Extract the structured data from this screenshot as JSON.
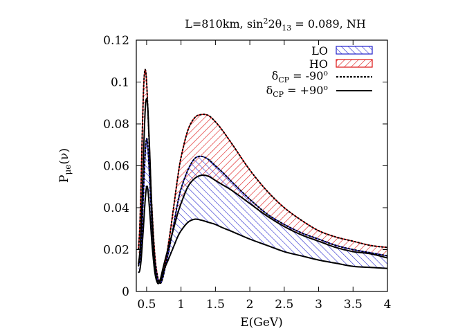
{
  "chart_data": {
    "type": "area",
    "title": "L=810km, sin²2θ₁₃ = 0.089, NH",
    "title_parts": {
      "prefix": "L=810km, sin",
      "sup": "2",
      "mid": "2θ",
      "sub": "13",
      "suffix": " = 0.089, NH"
    },
    "xlabel": "E(GeV)",
    "ylabel": {
      "base": "P",
      "sub": "μe",
      "suffix": "(ν)"
    },
    "xlim": [
      0.35,
      4.0
    ],
    "ylim": [
      0.0,
      0.12
    ],
    "xticks": [
      0.5,
      1,
      1.5,
      2,
      2.5,
      3,
      3.5,
      4
    ],
    "xtick_labels": [
      "0.5",
      "1",
      "1.5",
      "2",
      "2.5",
      "3",
      "3.5",
      "4"
    ],
    "yticks": [
      0,
      0.02,
      0.04,
      0.06,
      0.08,
      0.1,
      0.12
    ],
    "ytick_labels": [
      "0",
      "0.02",
      "0.04",
      "0.06",
      "0.08",
      "0.1",
      "0.12"
    ],
    "grid": false,
    "legend_position": "top-right",
    "colors": {
      "LO": "#2222cc",
      "HO": "#dd1111",
      "curve": "#000000"
    },
    "legend": [
      {
        "key": "LO",
        "label": "LO",
        "style": "hatched band"
      },
      {
        "key": "HO",
        "label": "HO",
        "style": "hatched band"
      },
      {
        "key": "cp_m90",
        "label_base": "δ",
        "label_sub": "CP",
        "label_rest": " = -90",
        "label_sup": "o",
        "style": "dashed"
      },
      {
        "key": "cp_p90",
        "label_base": "δ",
        "label_sub": "CP",
        "label_rest": " = +90",
        "label_sup": "o",
        "style": "solid"
      }
    ],
    "x": [
      0.38,
      0.4,
      0.42,
      0.44,
      0.46,
      0.48,
      0.5,
      0.52,
      0.55,
      0.58,
      0.62,
      0.66,
      0.7,
      0.73,
      0.76,
      0.8,
      0.85,
      0.9,
      0.95,
      1.0,
      1.1,
      1.2,
      1.3,
      1.4,
      1.5,
      1.6,
      1.75,
      2.0,
      2.25,
      2.5,
      2.75,
      3.0,
      3.25,
      3.5,
      3.75,
      4.0
    ],
    "series": [
      {
        "name": "HO δCP=-90°",
        "values": [
          0.02,
          0.03,
          0.052,
          0.08,
          0.1,
          0.106,
          0.1,
          0.085,
          0.06,
          0.038,
          0.017,
          0.007,
          0.004,
          0.006,
          0.011,
          0.019,
          0.03,
          0.042,
          0.054,
          0.064,
          0.077,
          0.083,
          0.0845,
          0.084,
          0.081,
          0.077,
          0.07,
          0.058,
          0.048,
          0.04,
          0.034,
          0.029,
          0.026,
          0.024,
          0.022,
          0.021
        ]
      },
      {
        "name": "HO δCP=+90°",
        "values": [
          0.013,
          0.018,
          0.03,
          0.05,
          0.07,
          0.087,
          0.092,
          0.086,
          0.062,
          0.035,
          0.012,
          0.004,
          0.006,
          0.01,
          0.014,
          0.019,
          0.025,
          0.031,
          0.037,
          0.042,
          0.05,
          0.054,
          0.0555,
          0.055,
          0.053,
          0.051,
          0.048,
          0.042,
          0.036,
          0.031,
          0.027,
          0.024,
          0.021,
          0.019,
          0.018,
          0.016
        ]
      },
      {
        "name": "LO δCP=-90°",
        "values": [
          0.012,
          0.015,
          0.022,
          0.036,
          0.052,
          0.066,
          0.073,
          0.068,
          0.05,
          0.031,
          0.014,
          0.006,
          0.004,
          0.006,
          0.01,
          0.016,
          0.024,
          0.033,
          0.042,
          0.049,
          0.058,
          0.0635,
          0.0645,
          0.063,
          0.06,
          0.057,
          0.052,
          0.044,
          0.037,
          0.032,
          0.028,
          0.025,
          0.022,
          0.02,
          0.0185,
          0.017
        ]
      },
      {
        "name": "LO δCP=+90°",
        "values": [
          0.009,
          0.01,
          0.015,
          0.024,
          0.034,
          0.044,
          0.05,
          0.048,
          0.036,
          0.022,
          0.009,
          0.004,
          0.005,
          0.008,
          0.011,
          0.014,
          0.018,
          0.022,
          0.026,
          0.029,
          0.033,
          0.0345,
          0.034,
          0.033,
          0.032,
          0.0305,
          0.0285,
          0.025,
          0.022,
          0.019,
          0.017,
          0.015,
          0.0135,
          0.012,
          0.0115,
          0.011
        ]
      }
    ]
  }
}
